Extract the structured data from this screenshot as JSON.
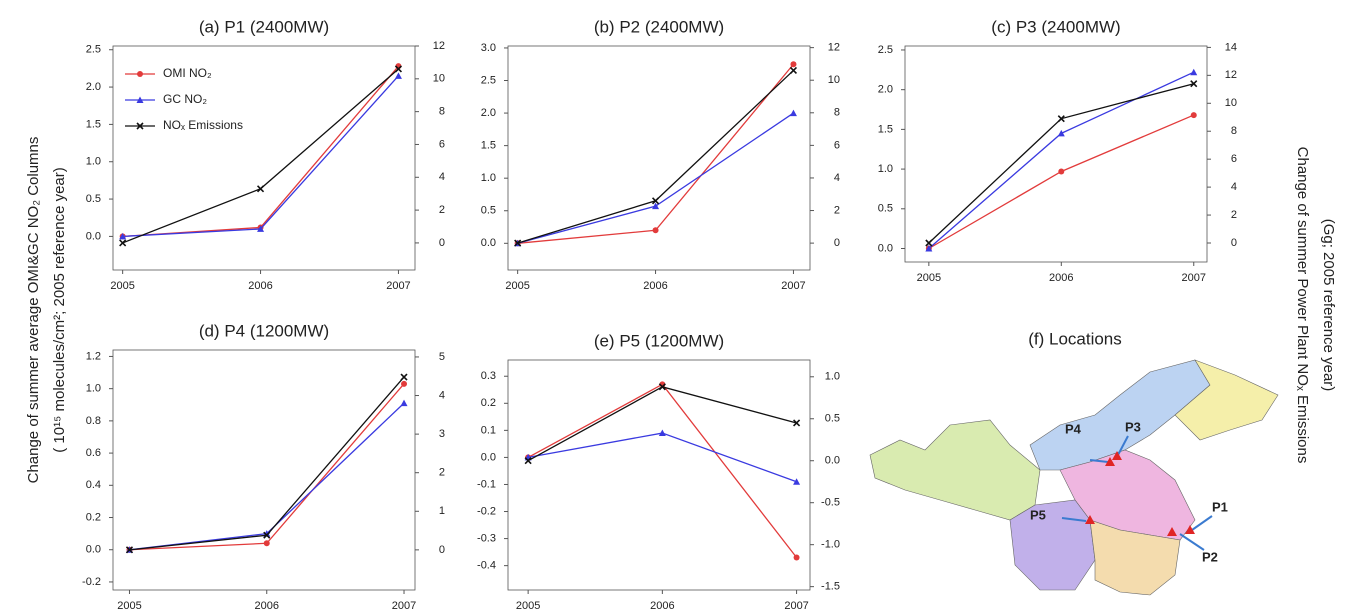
{
  "y_axis_label": [
    "Change of summer average OMI&GC NO₂ Columns",
    "( 10¹⁵ molecules/cm²; 2005 reference year)"
  ],
  "y2_axis_label": [
    "Change of summer Power Plant NOₓ Emissions",
    "(Gg; 2005 reference year)"
  ],
  "chart_data": [
    {
      "type": "line",
      "title": "(a) P1 (2400MW)",
      "x": [
        2005,
        2006,
        2007
      ],
      "xlim": [
        2004.93,
        2007.12
      ],
      "xticks": [
        2005,
        2006,
        2007
      ],
      "ylim": [
        -0.45,
        2.55
      ],
      "yticks": [
        {
          "value": 0,
          "label": "0.0"
        },
        {
          "value": 0.5,
          "label": "0.5"
        },
        {
          "value": 1,
          "label": "1.0"
        },
        {
          "value": 1.5,
          "label": "1.5"
        },
        {
          "value": 2,
          "label": "2.0"
        },
        {
          "value": 2.5,
          "label": "2.5"
        }
      ],
      "y2lim": [
        -1.65,
        12
      ],
      "y2ticks": [
        0,
        2,
        4,
        6,
        8,
        10,
        12
      ],
      "legend": "upper left",
      "series": [
        {
          "name": "OMI NO₂",
          "color": "#e23b3b",
          "marker": "circle",
          "values": [
            0,
            0.12,
            2.28
          ]
        },
        {
          "name": "GC NO₂",
          "color": "#3a3ae0",
          "marker": "triangle",
          "values": [
            0,
            0.1,
            2.15
          ]
        },
        {
          "name": "NOₓ Emissions",
          "color": "#111111",
          "marker": "x",
          "axis": "y2",
          "values": [
            0,
            3.3,
            10.6
          ]
        }
      ]
    },
    {
      "type": "line",
      "title": "(b) P2 (2400MW)",
      "x": [
        2005,
        2006,
        2007
      ],
      "xlim": [
        2004.93,
        2007.12
      ],
      "xticks": [
        2005,
        2006,
        2007
      ],
      "ylim": [
        -0.41,
        3.03
      ],
      "yticks": [
        {
          "value": 0,
          "label": "0.0"
        },
        {
          "value": 0.5,
          "label": "0.5"
        },
        {
          "value": 1,
          "label": "1.0"
        },
        {
          "value": 1.5,
          "label": "1.5"
        },
        {
          "value": 2,
          "label": "2.0"
        },
        {
          "value": 2.5,
          "label": "2.5"
        },
        {
          "value": 3,
          "label": "3.0"
        }
      ],
      "y2lim": [
        -1.65,
        12.1
      ],
      "y2ticks": [
        0,
        2,
        4,
        6,
        8,
        10,
        12
      ],
      "series": [
        {
          "color": "#e23b3b",
          "marker": "circle",
          "values": [
            0,
            0.2,
            2.75
          ]
        },
        {
          "color": "#3a3ae0",
          "marker": "triangle",
          "values": [
            0,
            0.57,
            2.0
          ]
        },
        {
          "color": "#111111",
          "marker": "x",
          "axis": "y2",
          "values": [
            0,
            2.6,
            10.6
          ]
        }
      ]
    },
    {
      "type": "line",
      "title": "(c) P3 (2400MW)",
      "x": [
        2005,
        2006,
        2007
      ],
      "xlim": [
        2004.82,
        2007.1
      ],
      "xticks": [
        2005,
        2006,
        2007
      ],
      "ylim": [
        -0.17,
        2.55
      ],
      "yticks": [
        {
          "value": 0,
          "label": "0.0"
        },
        {
          "value": 0.5,
          "label": "0.5"
        },
        {
          "value": 1,
          "label": "1.0"
        },
        {
          "value": 1.5,
          "label": "1.5"
        },
        {
          "value": 2,
          "label": "2.0"
        },
        {
          "value": 2.5,
          "label": "2.5"
        }
      ],
      "y2lim": [
        -1.36,
        14.1
      ],
      "y2ticks": [
        0,
        2,
        4,
        6,
        8,
        10,
        12,
        14
      ],
      "series": [
        {
          "color": "#e23b3b",
          "marker": "circle",
          "values": [
            0,
            0.97,
            1.68
          ]
        },
        {
          "color": "#3a3ae0",
          "marker": "triangle",
          "values": [
            0,
            1.45,
            2.22
          ]
        },
        {
          "color": "#111111",
          "marker": "x",
          "axis": "y2",
          "values": [
            0,
            8.9,
            11.4
          ]
        }
      ]
    },
    {
      "type": "line",
      "title": "(d) P4 (1200MW)",
      "x": [
        2005,
        2006,
        2007
      ],
      "xlim": [
        2004.88,
        2007.08
      ],
      "xticks": [
        2005,
        2006,
        2007
      ],
      "ylim": [
        -0.25,
        1.24
      ],
      "yticks": [
        {
          "value": -0.2,
          "label": "-0.2"
        },
        {
          "value": 0,
          "label": "0.0"
        },
        {
          "value": 0.2,
          "label": "0.2"
        },
        {
          "value": 0.4,
          "label": "0.4"
        },
        {
          "value": 0.6,
          "label": "0.6"
        },
        {
          "value": 0.8,
          "label": "0.8"
        },
        {
          "value": 1,
          "label": "1.0"
        },
        {
          "value": 1.2,
          "label": "1.2"
        }
      ],
      "y2lim": [
        -1.04,
        5.18
      ],
      "y2ticks": [
        0,
        1,
        2,
        3,
        4,
        5
      ],
      "series": [
        {
          "color": "#e23b3b",
          "marker": "circle",
          "values": [
            0,
            0.04,
            1.03
          ]
        },
        {
          "color": "#3a3ae0",
          "marker": "triangle",
          "values": [
            0,
            0.1,
            0.91
          ]
        },
        {
          "color": "#111111",
          "marker": "x",
          "axis": "y2",
          "values": [
            0,
            0.38,
            4.48
          ]
        }
      ]
    },
    {
      "type": "line",
      "title": "(e) P5 (1200MW)",
      "x": [
        2005,
        2006,
        2007
      ],
      "xlim": [
        2004.85,
        2007.1
      ],
      "xticks": [
        2005,
        2006,
        2007
      ],
      "ylim": [
        -0.49,
        0.36
      ],
      "yticks": [
        {
          "value": -0.4,
          "label": "-0.4"
        },
        {
          "value": -0.3,
          "label": "-0.3"
        },
        {
          "value": -0.2,
          "label": "-0.2"
        },
        {
          "value": -0.1,
          "label": "-0.1"
        },
        {
          "value": 0,
          "label": "0.0"
        },
        {
          "value": 0.1,
          "label": "0.1"
        },
        {
          "value": 0.2,
          "label": "0.2"
        },
        {
          "value": 0.3,
          "label": "0.3"
        }
      ],
      "y2lim": [
        -1.54,
        1.2
      ],
      "y2ticks": [
        {
          "value": -1.5,
          "label": "-1.5"
        },
        {
          "value": -1,
          "label": "-1.0"
        },
        {
          "value": -0.5,
          "label": "-0.5"
        },
        {
          "value": 0,
          "label": "0.0"
        },
        {
          "value": 0.5,
          "label": "0.5"
        },
        {
          "value": 1,
          "label": "1.0"
        }
      ],
      "series": [
        {
          "color": "#e23b3b",
          "marker": "circle",
          "values": [
            0,
            0.27,
            -0.37
          ]
        },
        {
          "color": "#3a3ae0",
          "marker": "triangle",
          "values": [
            0,
            0.09,
            -0.09
          ]
        },
        {
          "color": "#111111",
          "marker": "x",
          "axis": "y2",
          "values": [
            0,
            0.88,
            0.45
          ]
        }
      ]
    },
    {
      "type": "map",
      "title": "(f) Locations",
      "labels": [
        "P1",
        "P2",
        "P3",
        "P4",
        "P5"
      ]
    }
  ]
}
